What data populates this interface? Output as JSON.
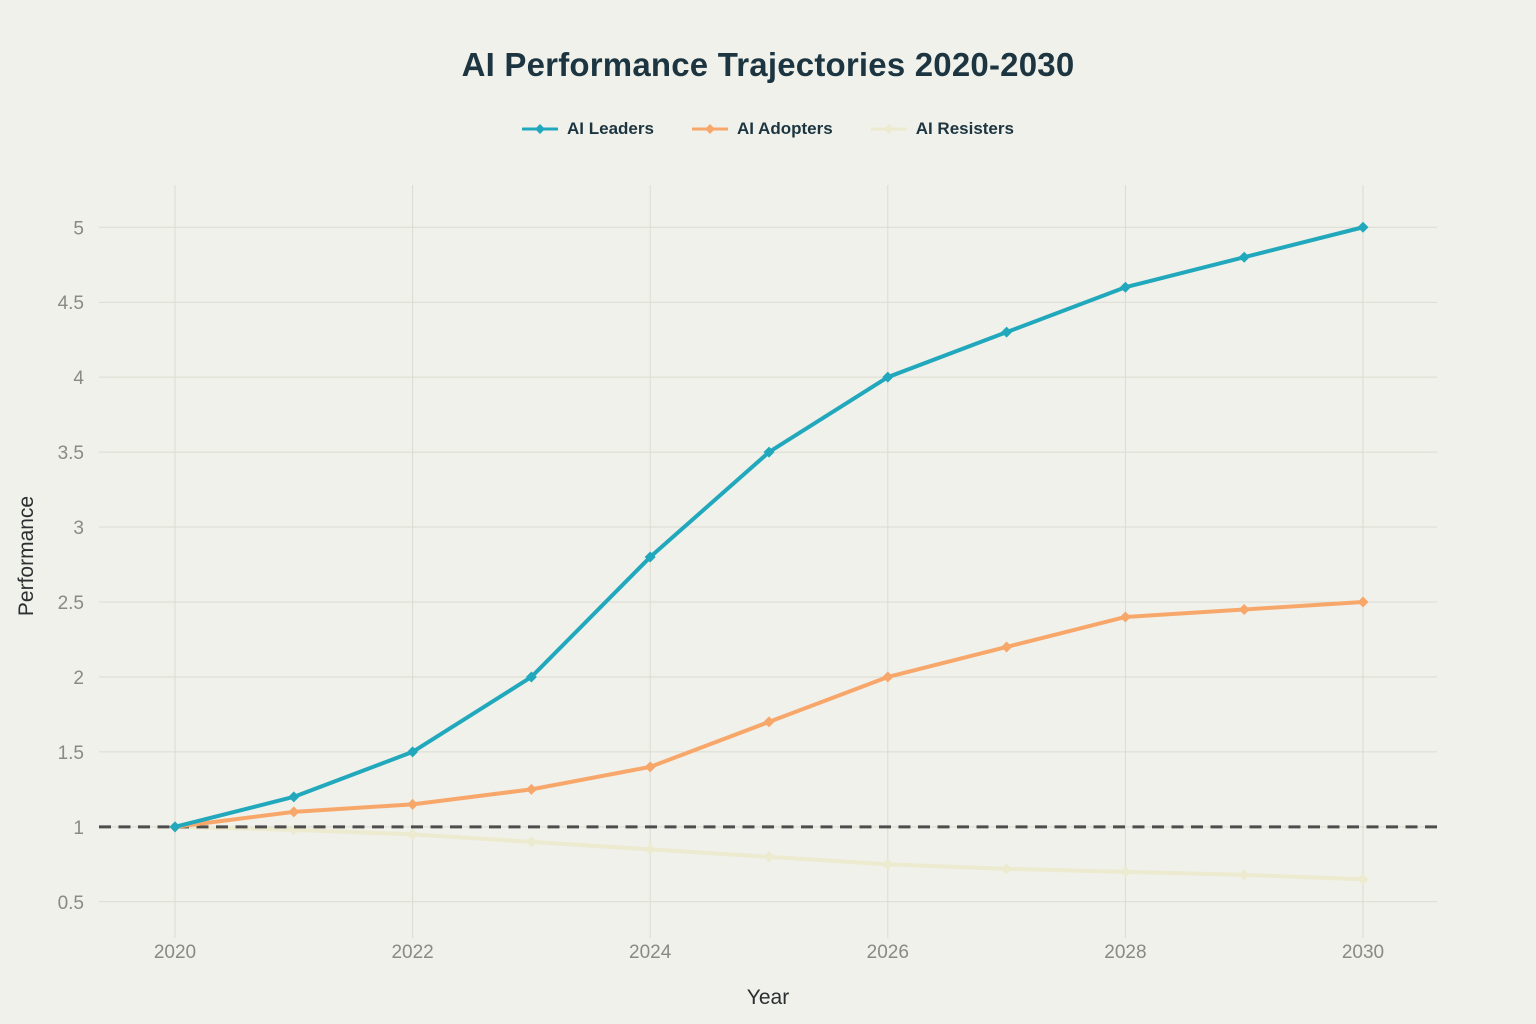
{
  "chart_data": {
    "type": "line",
    "title": "AI Performance Trajectories 2020-2030",
    "xlabel": "Year",
    "ylabel": "Performance",
    "x": [
      2020,
      2021,
      2022,
      2023,
      2024,
      2025,
      2026,
      2027,
      2028,
      2029,
      2030
    ],
    "series": [
      {
        "name": "AI Leaders",
        "color": "#21A8BD",
        "values": [
          1.0,
          1.2,
          1.5,
          2.0,
          2.8,
          3.5,
          4.0,
          4.3,
          4.6,
          4.8,
          5.0
        ]
      },
      {
        "name": "AI Adopters",
        "color": "#F8A76B",
        "values": [
          1.0,
          1.1,
          1.15,
          1.25,
          1.4,
          1.7,
          2.0,
          2.2,
          2.4,
          2.45,
          2.5
        ]
      },
      {
        "name": "AI Resisters",
        "color": "#ECEACF",
        "values": [
          1.0,
          0.98,
          0.95,
          0.9,
          0.85,
          0.8,
          0.75,
          0.72,
          0.7,
          0.68,
          0.65
        ]
      }
    ],
    "x_ticks": [
      2020,
      2022,
      2024,
      2026,
      2028,
      2030
    ],
    "y_ticks": [
      0.5,
      1,
      1.5,
      2,
      2.5,
      3,
      3.5,
      4,
      4.5,
      5
    ],
    "ylim": [
      0.26,
      5.28
    ],
    "grid": true,
    "legend_position": "top-center",
    "marker": "diamond",
    "reference_line": {
      "y": 1,
      "style": "dashed"
    }
  },
  "style": {
    "background": "#F0F1EA",
    "grid_color": "#DBDBD1",
    "tick_text_color": "#8A8A84",
    "title_color": "#1C3541",
    "legend_text_color": "#1C3541",
    "axis_label_color": "#2B2F30",
    "reference_line_color": "#4D4D4D"
  }
}
